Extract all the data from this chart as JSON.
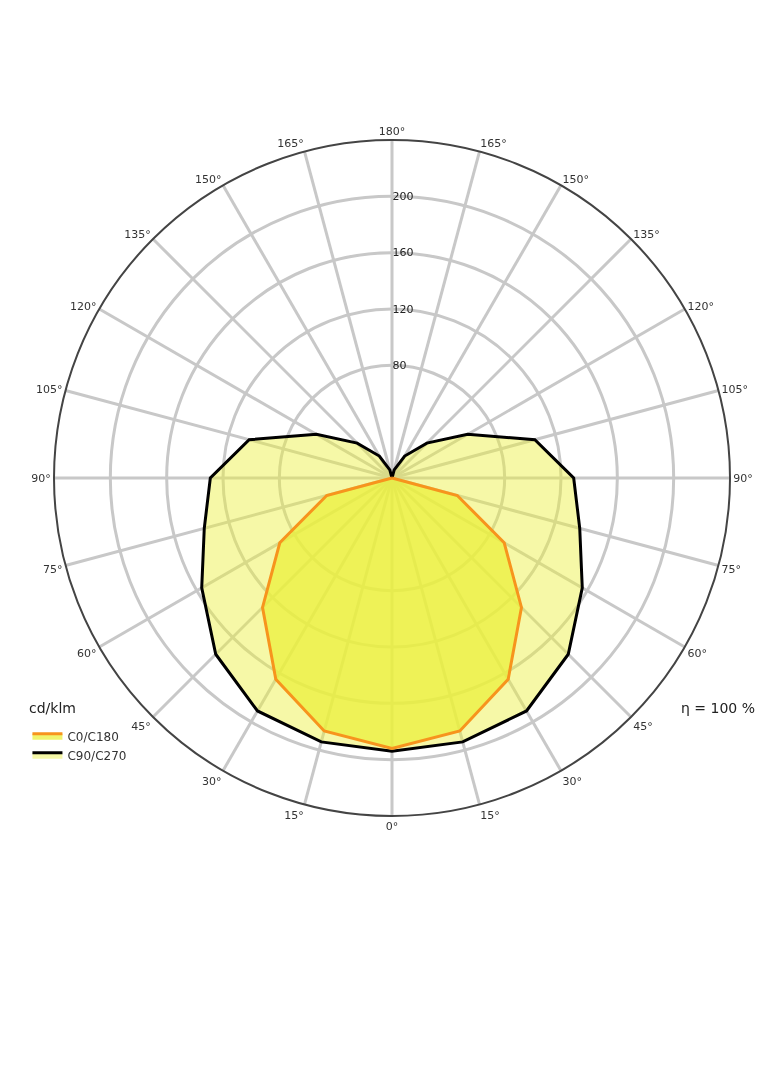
{
  "chart_data": {
    "type": "radar",
    "categories": [
      "180°",
      "165°",
      "150°",
      "135°",
      "120°",
      "105°",
      "90°",
      "75°",
      "60°",
      "45°",
      "30°",
      "15°",
      "0°",
      "15°",
      "30°",
      "45°",
      "60°",
      "75°",
      "90°",
      "105°",
      "120°",
      "135°",
      "150°",
      "165°"
    ],
    "series": [
      {
        "name": "C0/C180",
        "color": "#f7941d",
        "values": [
          0,
          0,
          0,
          0,
          0,
          0,
          0,
          48,
          92,
          130,
          165,
          186,
          192,
          186,
          165,
          130,
          92,
          48,
          0,
          0,
          0,
          0,
          0,
          0
        ]
      },
      {
        "name": "C90/C270",
        "color": "#000000",
        "values": [
          0,
          6,
          18,
          35,
          62,
          105,
          129,
          138,
          156,
          177,
          191,
          194,
          194,
          194,
          191,
          177,
          156,
          138,
          129,
          105,
          62,
          35,
          18,
          6
        ]
      }
    ],
    "ylim": [
      0,
      240
    ],
    "yticks": [
      80,
      120,
      160,
      200
    ],
    "grid": true,
    "legend": "bottom left",
    "line_style": "solid",
    "annotations": [
      "cd/klm",
      "η = 100 %"
    ]
  }
}
